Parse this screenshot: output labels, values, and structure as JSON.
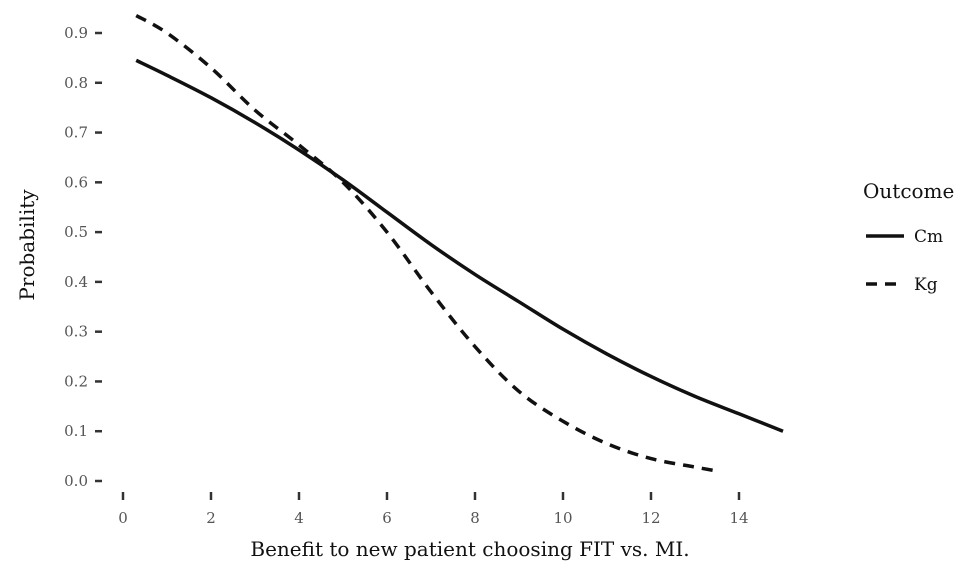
{
  "chart_data": {
    "type": "line",
    "xlabel": "Benefit to new patient choosing FIT vs. MI.",
    "ylabel": "Probability",
    "xlim": [
      0,
      15
    ],
    "ylim": [
      0,
      0.94
    ],
    "x_ticks": [
      0,
      2,
      4,
      6,
      8,
      10,
      12,
      14
    ],
    "x_tick_labels": [
      "0",
      "2",
      "4",
      "6",
      "8",
      "10",
      "12",
      "14"
    ],
    "y_ticks": [
      0.0,
      0.1,
      0.2,
      0.3,
      0.4,
      0.5,
      0.6,
      0.7,
      0.8,
      0.9
    ],
    "y_tick_labels": [
      "0.0",
      "0.1",
      "0.2",
      "0.3",
      "0.4",
      "0.5",
      "0.6",
      "0.7",
      "0.8",
      "0.9"
    ],
    "grid": false,
    "legend": {
      "title": "Outcome",
      "position": "right"
    },
    "series": [
      {
        "name": "Cm",
        "style": "solid",
        "color": "#111111",
        "x": [
          0.3,
          1,
          2,
          3,
          4,
          5,
          6,
          7,
          8,
          9,
          10,
          11,
          12,
          13,
          14,
          15
        ],
        "y": [
          0.845,
          0.815,
          0.77,
          0.72,
          0.665,
          0.605,
          0.54,
          0.475,
          0.415,
          0.36,
          0.305,
          0.255,
          0.21,
          0.17,
          0.135,
          0.1
        ]
      },
      {
        "name": "Kg",
        "style": "dashed",
        "color": "#111111",
        "x": [
          0.3,
          1,
          2,
          3,
          4,
          5,
          6,
          7,
          8,
          9,
          10,
          11,
          12,
          13,
          13.5
        ],
        "y": [
          0.935,
          0.9,
          0.83,
          0.745,
          0.675,
          0.6,
          0.5,
          0.38,
          0.27,
          0.18,
          0.12,
          0.075,
          0.045,
          0.028,
          0.02
        ]
      }
    ]
  }
}
